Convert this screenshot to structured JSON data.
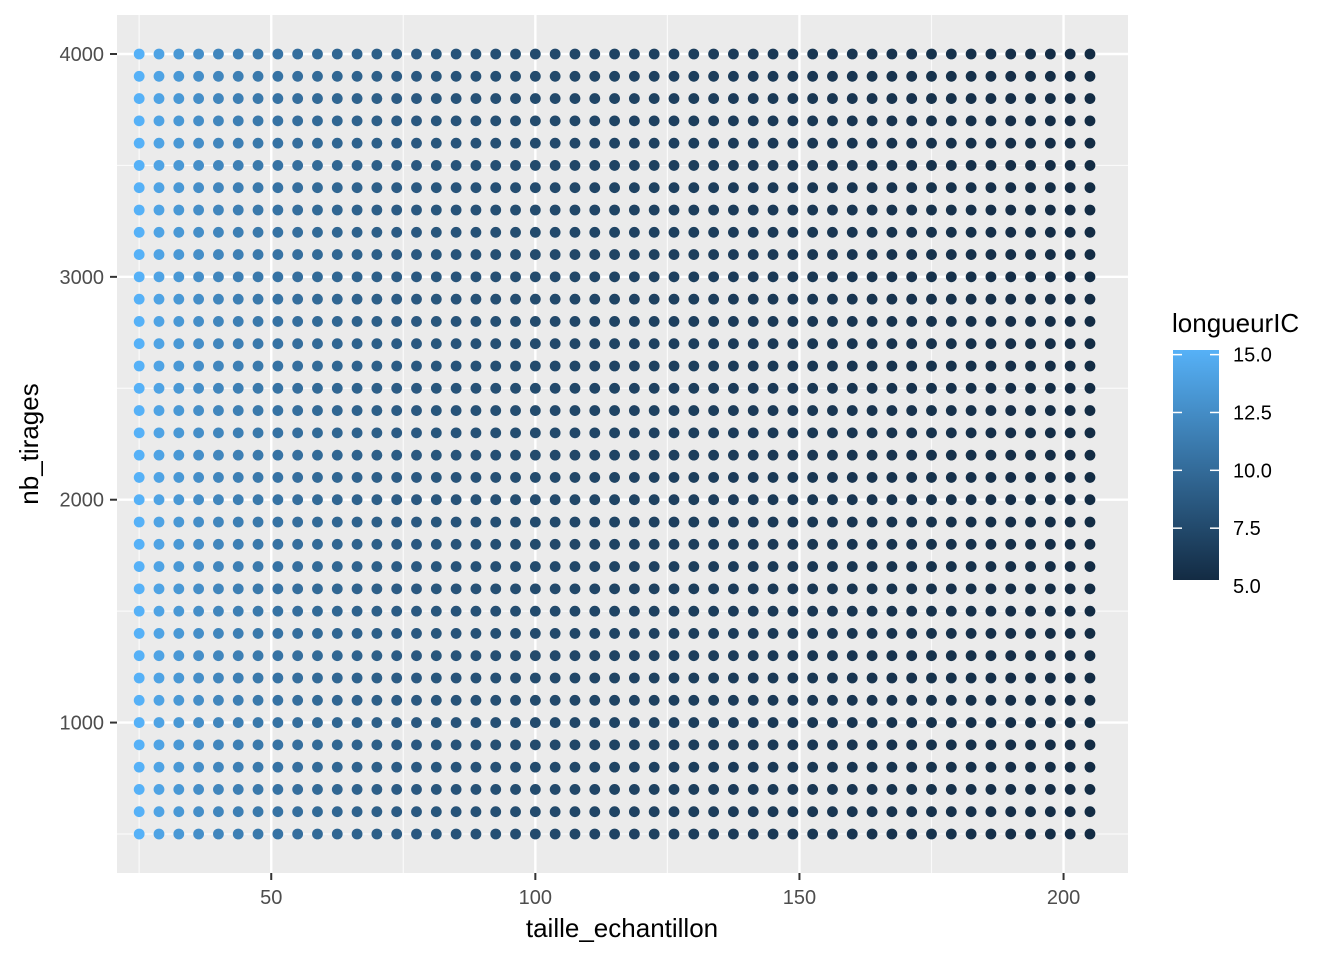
{
  "chart_data": {
    "type": "scatter",
    "xlabel": "taille_echantillon",
    "ylabel": "nb_tirages",
    "xlim": [
      20.8,
      212.2
    ],
    "ylim": [
      325,
      4175
    ],
    "x_ticks": [
      50,
      100,
      150,
      200
    ],
    "y_ticks": [
      1000,
      2000,
      3000,
      4000
    ],
    "x_tick_labels": [
      "50",
      "100",
      "150",
      "200"
    ],
    "y_tick_labels": [
      "1000",
      "2000",
      "3000",
      "4000"
    ],
    "grid": true,
    "x": {
      "start": 25,
      "end": 208,
      "step": 3.75
    },
    "y": {
      "start": 500,
      "end": 4000,
      "step": 100
    },
    "color_rule": "longueurIC decreases with taille_echantillon: longueurIC ≈ 76 / sqrt(taille_echantillon), independent of nb_tirages",
    "color_scale": {
      "name": "longueurIC",
      "min": 5.26,
      "max": 15.2,
      "low_color": "#132b43",
      "high_color": "#56b1f7",
      "ticks": [
        5.0,
        7.5,
        10.0,
        12.5,
        15.0
      ],
      "tick_labels": [
        "5.0",
        "7.5",
        "10.0",
        "12.5",
        "15.0"
      ]
    },
    "legend": {
      "position": "right",
      "title": "longueurIC"
    }
  }
}
